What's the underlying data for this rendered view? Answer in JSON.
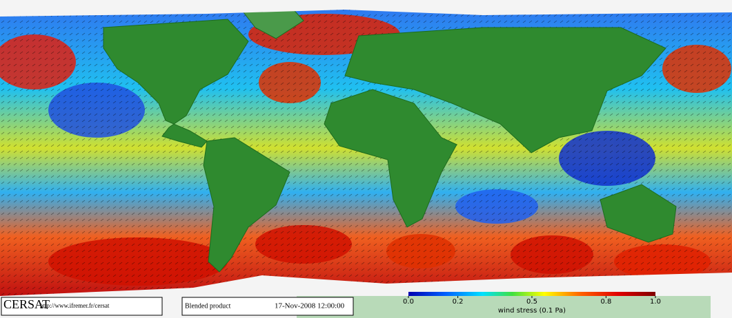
{
  "header": {
    "logo": "CERSAT",
    "url": "http://www.ifremer.fr/cersat"
  },
  "product": {
    "name": "Blended product",
    "date": "17-Nov-2008 12:00:00"
  },
  "colorbar": {
    "label": "wind stress (0.1 Pa)",
    "lim": [
      0,
      1
    ],
    "ticks": [
      {
        "value": 0,
        "label": "0.0"
      },
      0.2,
      0.5,
      0.8,
      {
        "value": 1,
        "label": "1.0"
      }
    ]
  }
}
